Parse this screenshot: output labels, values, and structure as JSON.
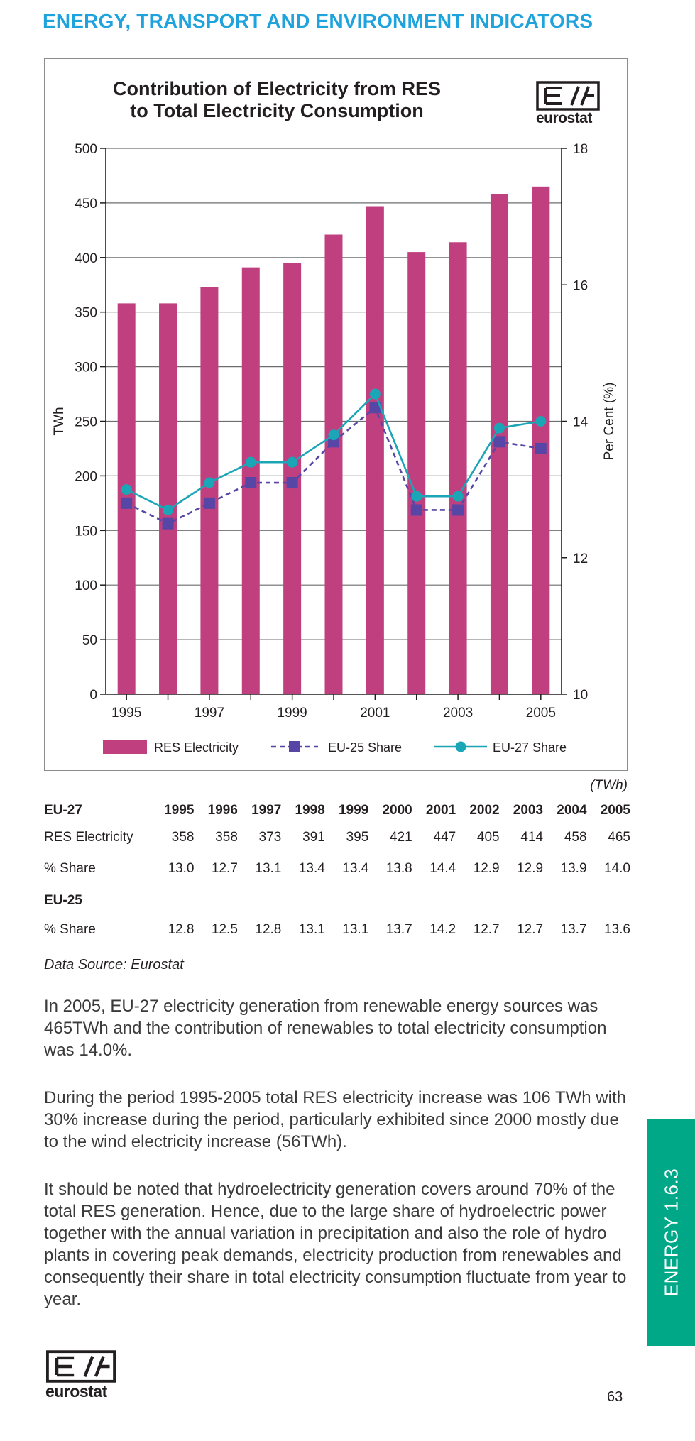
{
  "header": {
    "title": "ENERGY, TRANSPORT AND ENVIRONMENT INDICATORS"
  },
  "logo": {
    "word": "eurostat"
  },
  "colors": {
    "header": "#1fa3dd",
    "bars": "#c0407f",
    "eu25": "#5746a6",
    "eu27": "#1aa6b7",
    "tab": "#00a887"
  },
  "chart_data": {
    "type": "bar",
    "title": "Contribution of Electricity from RES to Total Electricity Consumption",
    "title_lines": [
      "Contribution of Electricity from RES",
      "to Total Electricity Consumption"
    ],
    "categories": [
      "1995",
      "1996",
      "1997",
      "1998",
      "1999",
      "2000",
      "2001",
      "2002",
      "2003",
      "2004",
      "2005"
    ],
    "x_tick_labels": [
      "1995",
      "1997",
      "1999",
      "2001",
      "2003",
      "2005"
    ],
    "ylabel": "TWh",
    "y2label": "Per Cent (%)",
    "ylim": [
      0,
      500
    ],
    "y_ticks": [
      "0",
      "50",
      "100",
      "150",
      "200",
      "250",
      "300",
      "350",
      "400",
      "450",
      "500"
    ],
    "y2lim": [
      10,
      18
    ],
    "y2_ticks": [
      "10",
      "12",
      "14",
      "16",
      "18"
    ],
    "grid": true,
    "legend_position": "bottom",
    "series": [
      {
        "name": "RES Electricity",
        "type": "bar",
        "axis": "left",
        "values": [
          358,
          358,
          373,
          391,
          395,
          421,
          447,
          405,
          414,
          458,
          465
        ]
      },
      {
        "name": "EU-25 Share",
        "type": "line",
        "axis": "right",
        "style": "dashed-square",
        "values": [
          12.8,
          12.5,
          12.8,
          13.1,
          13.1,
          13.7,
          14.2,
          12.7,
          12.7,
          13.7,
          13.6
        ]
      },
      {
        "name": "EU-27 Share",
        "type": "line",
        "axis": "right",
        "style": "solid-circle",
        "values": [
          13.0,
          12.7,
          13.1,
          13.4,
          13.4,
          13.8,
          14.4,
          12.9,
          12.9,
          13.9,
          14.0
        ]
      }
    ]
  },
  "table": {
    "unit": "(TWh)",
    "eu27_label": "EU-27",
    "years": [
      "1995",
      "1996",
      "1997",
      "1998",
      "1999",
      "2000",
      "2001",
      "2002",
      "2003",
      "2004",
      "2005"
    ],
    "rows": [
      {
        "label": "RES Electricity",
        "values": [
          "358",
          "358",
          "373",
          "391",
          "395",
          "421",
          "447",
          "405",
          "414",
          "458",
          "465"
        ]
      },
      {
        "label": "% Share",
        "values": [
          "13.0",
          "12.7",
          "13.1",
          "13.4",
          "13.4",
          "13.8",
          "14.4",
          "12.9",
          "12.9",
          "13.9",
          "14.0"
        ]
      }
    ],
    "eu25_label": "EU-25",
    "eu25_row": {
      "label": "% Share",
      "values": [
        "12.8",
        "12.5",
        "12.8",
        "13.1",
        "13.1",
        "13.7",
        "14.2",
        "12.7",
        "12.7",
        "13.7",
        "13.6"
      ]
    }
  },
  "source": "Data Source: Eurostat",
  "paragraphs": [
    "In 2005, EU-27 electricity generation from renewable energy sources was 465TWh and the contribution of renewables to total electricity consumption was 14.0%.",
    "During the period 1995-2005 total RES electricity increase was 106 TWh with 30% increase during the period, particularly exhibited since 2000 mostly due to the wind electricity increase (56TWh).",
    "It should be noted that hydroelectricity generation covers around 70% of the total RES generation. Hence, due to the large share of hydroelectric power together with the annual variation in precipitation and also the role of hydro plants in covering peak demands, electricity production from renewables and consequently their share in total electricity consumption fluctuate from year to year."
  ],
  "side_tab": "ENERGY 1.6.3",
  "page_number": "63"
}
